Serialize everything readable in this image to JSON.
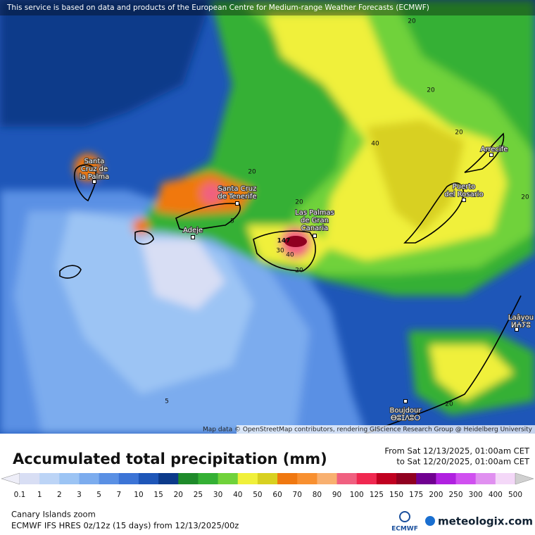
{
  "header": {
    "notice": "This service is based on data and products of the European Centre for Medium-range Weather Forecasts (ECMWF)"
  },
  "map": {
    "places": [
      [
        "Santa",
        "Cruz de",
        "la Palma"
      ],
      [
        "Santa Cruz",
        "de Tenerife"
      ],
      [
        "Adeje"
      ],
      [
        "Las Palmas",
        "de Gran",
        "Canaria"
      ],
      [
        "Puerto",
        "del Rosario"
      ],
      [
        "Arrecife"
      ],
      [
        "Laâyou",
        "ⵍⵄⵢⵓ"
      ],
      [
        "Boujdour",
        "ⴱⵓⵊⴷⵓⵔ"
      ]
    ],
    "contour_labels": [
      20,
      20,
      20,
      40,
      20,
      20,
      5,
      20,
      147,
      30,
      40,
      20,
      5,
      20
    ],
    "attribution": "Map data © OpenStreetMap contributors, rendering GIScience Research Group @ Heidelberg University"
  },
  "legend": {
    "title": "Accumulated total precipitation (mm)",
    "from": "From Sat 12/13/2025, 01:00am CET",
    "to": "to Sat 12/20/2025, 01:00am CET",
    "labels": [
      0.1,
      1,
      2,
      3,
      5,
      7,
      10,
      15,
      20,
      25,
      30,
      40,
      50,
      60,
      70,
      80,
      90,
      100,
      125,
      150,
      175,
      200,
      250,
      300,
      400,
      500
    ],
    "colors": [
      "#d8def4",
      "#bcd4f6",
      "#9cc4f4",
      "#7cacee",
      "#5a90e4",
      "#3c74d6",
      "#1e56b8",
      "#0c3a8a",
      "#1e8a2a",
      "#34b034",
      "#70d23a",
      "#f0f03a",
      "#d8d020",
      "#f07810",
      "#f89030",
      "#f8b070",
      "#f06080",
      "#f02850",
      "#c00020",
      "#900020",
      "#700090",
      "#b020e0",
      "#d050f0",
      "#e090f0",
      "#f4d8f8",
      "#d0d0d0"
    ]
  },
  "footer": {
    "region": "Canary Islands zoom",
    "model": "ECMWF IFS HRES 0z/12z (15 days)  from  12/13/2025/00z",
    "ecmwf_logo": "ECMWF",
    "brand": "meteologix.com"
  }
}
